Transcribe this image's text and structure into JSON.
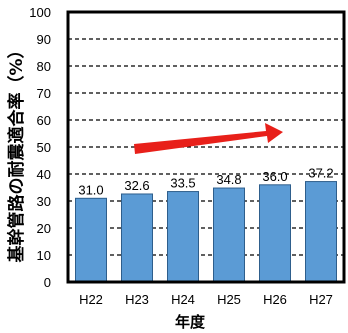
{
  "chart_data": {
    "type": "bar",
    "categories": [
      "H22",
      "H23",
      "H24",
      "H25",
      "H26",
      "H27"
    ],
    "values": [
      31.0,
      32.6,
      33.5,
      34.8,
      36.0,
      37.2
    ],
    "value_labels": [
      "31.0",
      "32.6",
      "33.5",
      "34.8",
      "36.0",
      "37.2"
    ],
    "xlabel": "年度",
    "ylabel": "基幹管路の耐震適合率（%）",
    "ylim": [
      0,
      100
    ],
    "yticks": [
      0,
      10,
      20,
      30,
      40,
      50,
      60,
      70,
      80,
      90,
      100
    ],
    "grid": "dashed-horizontal",
    "bar_color": "#5B9BD5",
    "bar_edge_color": "#2E5E8C",
    "arrow_color": "#E8201A",
    "annotation": "upward-trend-arrow"
  }
}
